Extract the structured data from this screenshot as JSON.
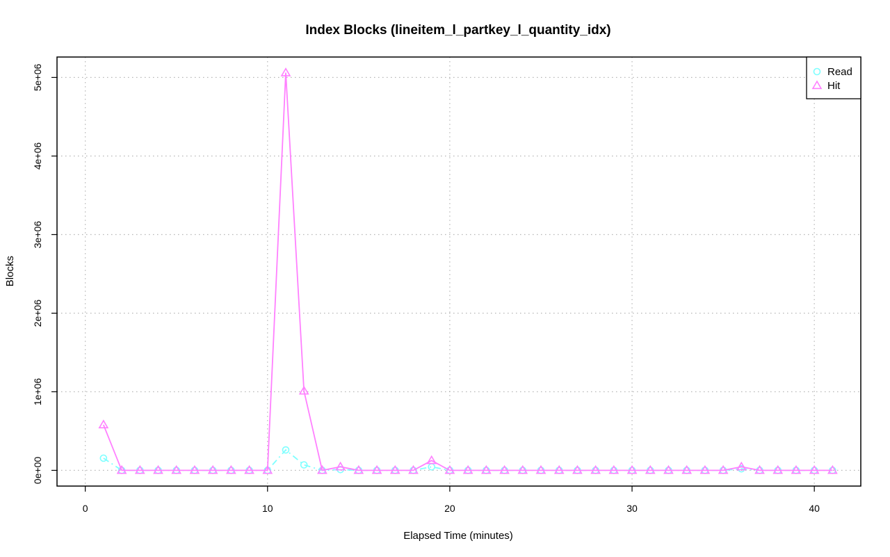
{
  "chart_data": {
    "type": "line",
    "title": "Index Blocks (lineitem_l_partkey_l_quantity_idx)",
    "xlabel": "Elapsed Time (minutes)",
    "ylabel": "Blocks",
    "xlim": [
      -1.55,
      42.55
    ],
    "ylim": [
      -200000,
      5260000
    ],
    "x_ticks": [
      0,
      10,
      20,
      30,
      40
    ],
    "x_tick_labels": [
      "0",
      "10",
      "20",
      "30",
      "40"
    ],
    "y_ticks": [
      0,
      1000000,
      2000000,
      3000000,
      4000000,
      5000000
    ],
    "y_tick_labels": [
      "0e+00",
      "1e+06",
      "2e+06",
      "3e+06",
      "4e+06",
      "5e+06"
    ],
    "grid": true,
    "legend_position": "top-right",
    "x": [
      1,
      2,
      3,
      4,
      5,
      6,
      7,
      8,
      9,
      10,
      11,
      12,
      13,
      14,
      15,
      16,
      17,
      18,
      19,
      20,
      21,
      22,
      23,
      24,
      25,
      26,
      27,
      28,
      29,
      30,
      31,
      32,
      33,
      34,
      35,
      36,
      37,
      38,
      39,
      40,
      41
    ],
    "series": [
      {
        "name": "Read",
        "color": "#7fffff",
        "marker": "circle",
        "line_style": "dashdot",
        "values": [
          155000,
          0,
          0,
          0,
          0,
          0,
          0,
          0,
          0,
          0,
          260000,
          70000,
          0,
          10000,
          0,
          0,
          0,
          0,
          45000,
          0,
          0,
          0,
          0,
          0,
          0,
          0,
          0,
          0,
          0,
          0,
          0,
          0,
          0,
          0,
          0,
          20000,
          0,
          0,
          0,
          0,
          0
        ]
      },
      {
        "name": "Hit",
        "color": "#ff80ff",
        "marker": "triangle",
        "line_style": "solid",
        "values": [
          580000,
          0,
          0,
          0,
          0,
          0,
          0,
          0,
          0,
          0,
          5060000,
          1010000,
          0,
          45000,
          0,
          0,
          0,
          0,
          125000,
          0,
          0,
          0,
          0,
          0,
          0,
          0,
          0,
          0,
          0,
          0,
          0,
          0,
          0,
          0,
          0,
          45000,
          0,
          0,
          0,
          0,
          0
        ]
      }
    ]
  }
}
